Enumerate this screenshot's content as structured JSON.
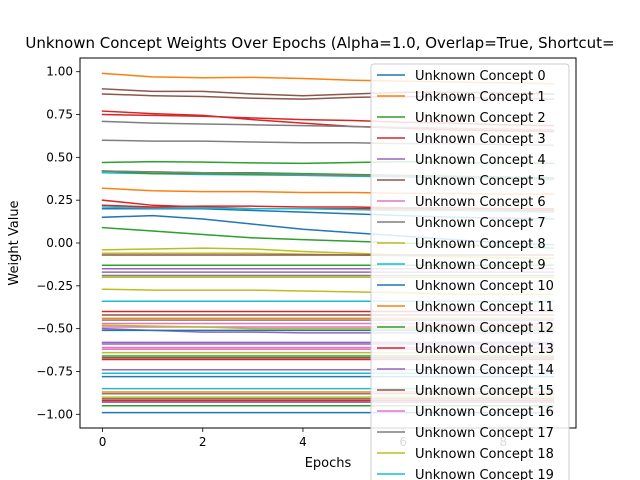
{
  "chart_data": {
    "type": "line",
    "title": "Unknown Concept Weights Over Epochs (Alpha=1.0, Overlap=True, Shortcut=",
    "xlabel": "Epochs",
    "ylabel": "Weight Value",
    "xlim": [
      -0.45,
      9.45
    ],
    "ylim": [
      -1.08,
      1.08
    ],
    "xticks": [
      0,
      2,
      4,
      6,
      8
    ],
    "yticks": [
      -1.0,
      -0.75,
      -0.5,
      -0.25,
      0.0,
      0.25,
      0.5,
      0.75,
      1.0
    ],
    "xtick_labels": [
      "0",
      "2",
      "4",
      "6",
      "8"
    ],
    "ytick_labels": [
      "−1.00",
      "−0.75",
      "−0.50",
      "−0.25",
      "0.00",
      "0.25",
      "0.50",
      "0.75",
      "1.00"
    ],
    "grid": false,
    "legend_position": "upper right",
    "x": [
      0,
      1,
      2,
      3,
      4,
      5,
      6,
      7,
      8,
      9
    ],
    "series": [
      {
        "name": "Unknown Concept 0",
        "color": "#1f77b4",
        "values": [
          -0.99,
          -0.99,
          -0.99,
          -0.99,
          -0.99,
          -0.99,
          -0.99,
          -0.99,
          -0.99,
          -0.99
        ]
      },
      {
        "name": "Unknown Concept 1",
        "color": "#ff7f0e",
        "values": [
          0.99,
          0.97,
          0.965,
          0.967,
          0.96,
          0.95,
          0.945,
          0.94,
          0.935,
          0.93
        ]
      },
      {
        "name": "Unknown Concept 2",
        "color": "#2ca02c",
        "values": [
          0.47,
          0.475,
          0.472,
          0.468,
          0.465,
          0.47,
          0.475,
          0.47,
          0.468,
          0.465
        ]
      },
      {
        "name": "Unknown Concept 3",
        "color": "#d62728",
        "values": [
          0.77,
          0.755,
          0.745,
          0.72,
          0.7,
          0.68,
          0.67,
          0.66,
          0.655,
          0.65
        ]
      },
      {
        "name": "Unknown Concept 4",
        "color": "#9467bd",
        "values": [
          -0.17,
          -0.17,
          -0.17,
          -0.17,
          -0.17,
          -0.17,
          -0.17,
          -0.17,
          -0.17,
          -0.17
        ]
      },
      {
        "name": "Unknown Concept 5",
        "color": "#8c564b",
        "values": [
          0.9,
          0.885,
          0.885,
          0.87,
          0.86,
          0.87,
          0.88,
          0.88,
          0.875,
          0.87
        ]
      },
      {
        "name": "Unknown Concept 6",
        "color": "#e377c2",
        "values": [
          -0.49,
          -0.49,
          -0.49,
          -0.49,
          -0.49,
          -0.49,
          -0.49,
          -0.49,
          -0.49,
          -0.49
        ]
      },
      {
        "name": "Unknown Concept 7",
        "color": "#7f7f7f",
        "values": [
          0.6,
          0.595,
          0.595,
          0.59,
          0.585,
          0.585,
          0.58,
          0.58,
          0.575,
          0.57
        ]
      },
      {
        "name": "Unknown Concept 8",
        "color": "#bcbd22",
        "values": [
          -0.04,
          -0.035,
          -0.03,
          -0.035,
          -0.05,
          -0.06,
          -0.07,
          -0.08,
          -0.085,
          -0.09
        ]
      },
      {
        "name": "Unknown Concept 9",
        "color": "#17becf",
        "values": [
          -0.34,
          -0.34,
          -0.34,
          -0.34,
          -0.34,
          -0.34,
          -0.34,
          -0.34,
          -0.34,
          -0.34
        ]
      },
      {
        "name": "Unknown Concept 10",
        "color": "#1f77b4",
        "values": [
          0.15,
          0.16,
          0.14,
          0.11,
          0.08,
          0.06,
          0.04,
          0.02,
          0.0,
          -0.01
        ]
      },
      {
        "name": "Unknown Concept 11",
        "color": "#ff7f0e",
        "values": [
          0.32,
          0.305,
          0.3,
          0.3,
          0.295,
          0.295,
          0.29,
          0.29,
          0.285,
          0.285
        ]
      },
      {
        "name": "Unknown Concept 12",
        "color": "#2ca02c",
        "values": [
          0.09,
          0.07,
          0.05,
          0.03,
          0.02,
          0.01,
          0.0,
          -0.01,
          -0.02,
          -0.03
        ]
      },
      {
        "name": "Unknown Concept 13",
        "color": "#d62728",
        "values": [
          0.25,
          0.22,
          0.21,
          0.2,
          0.2,
          0.2,
          0.2,
          0.195,
          0.19,
          0.19
        ]
      },
      {
        "name": "Unknown Concept 14",
        "color": "#9467bd",
        "values": [
          -0.58,
          -0.58,
          -0.58,
          -0.58,
          -0.58,
          -0.58,
          -0.58,
          -0.58,
          -0.58,
          -0.58
        ]
      },
      {
        "name": "Unknown Concept 15",
        "color": "#8c564b",
        "values": [
          -0.67,
          -0.67,
          -0.67,
          -0.67,
          -0.67,
          -0.67,
          -0.67,
          -0.67,
          -0.67,
          -0.67
        ]
      },
      {
        "name": "Unknown Concept 16",
        "color": "#e377c2",
        "values": [
          -0.61,
          -0.61,
          -0.61,
          -0.61,
          -0.61,
          -0.61,
          -0.61,
          -0.61,
          -0.61,
          -0.61
        ]
      },
      {
        "name": "Unknown Concept 17",
        "color": "#7f7f7f",
        "values": [
          0.71,
          0.7,
          0.695,
          0.69,
          0.685,
          0.68,
          0.675,
          0.67,
          0.665,
          0.66
        ]
      },
      {
        "name": "Unknown Concept 18",
        "color": "#bcbd22",
        "values": [
          -0.27,
          -0.275,
          -0.275,
          -0.275,
          -0.28,
          -0.285,
          -0.29,
          -0.3,
          -0.3,
          -0.3
        ]
      },
      {
        "name": "Unknown Concept 19",
        "color": "#17becf",
        "values": [
          0.41,
          0.405,
          0.4,
          0.398,
          0.395,
          0.39,
          0.385,
          0.38,
          0.375,
          0.37
        ]
      },
      {
        "name": "",
        "color": "#1f77b4",
        "values": [
          0.2,
          0.2,
          0.2,
          0.19,
          0.18,
          0.17,
          0.16,
          0.15,
          0.145,
          0.14
        ]
      },
      {
        "name": "",
        "color": "#2ca02c",
        "values": [
          0.42,
          0.415,
          0.41,
          0.41,
          0.405,
          0.4,
          0.395,
          0.39,
          0.385,
          0.38
        ]
      },
      {
        "name": "",
        "color": "#d62728",
        "values": [
          0.75,
          0.745,
          0.74,
          0.73,
          0.72,
          0.715,
          0.705,
          0.7,
          0.69,
          0.685
        ]
      },
      {
        "name": "",
        "color": "#8c564b",
        "values": [
          0.87,
          0.86,
          0.855,
          0.845,
          0.84,
          0.85,
          0.855,
          0.85,
          0.845,
          0.84
        ]
      },
      {
        "name": "",
        "color": "#17becf",
        "values": [
          0.21,
          0.205,
          0.205,
          0.2,
          0.2,
          0.195,
          0.19,
          0.19,
          0.185,
          0.18
        ]
      },
      {
        "name": "",
        "color": "#d62728",
        "values": [
          0.22,
          0.21,
          0.215,
          0.215,
          0.21,
          0.21,
          0.205,
          0.205,
          0.2,
          0.2
        ]
      },
      {
        "name": "",
        "color": "#2ca02c",
        "values": [
          0.42,
          0.405,
          0.405,
          0.4,
          0.4,
          0.395,
          0.39,
          0.385,
          0.38,
          0.375
        ]
      },
      {
        "name": "",
        "color": "#7f7f7f",
        "values": [
          0.42,
          0.415,
          0.41,
          0.405,
          0.4,
          0.395,
          0.39,
          0.385,
          0.38,
          0.375
        ]
      },
      {
        "name": "",
        "color": "#bcbd22",
        "values": [
          -0.06,
          -0.06,
          -0.06,
          -0.06,
          -0.065,
          -0.07,
          -0.075,
          -0.08,
          -0.085,
          -0.09
        ]
      },
      {
        "name": "",
        "color": "#2ca02c",
        "values": [
          -0.13,
          -0.13,
          -0.13,
          -0.13,
          -0.13,
          -0.13,
          -0.13,
          -0.13,
          -0.13,
          -0.13
        ]
      },
      {
        "name": "",
        "color": "#8c564b",
        "values": [
          -0.07,
          -0.07,
          -0.07,
          -0.07,
          -0.07,
          -0.07,
          -0.07,
          -0.07,
          -0.07,
          -0.07
        ]
      },
      {
        "name": "",
        "color": "#9467bd",
        "values": [
          -0.15,
          -0.15,
          -0.15,
          -0.15,
          -0.15,
          -0.15,
          -0.15,
          -0.15,
          -0.15,
          -0.15
        ]
      },
      {
        "name": "",
        "color": "#7f7f7f",
        "values": [
          -0.19,
          -0.19,
          -0.19,
          -0.19,
          -0.19,
          -0.19,
          -0.19,
          -0.19,
          -0.19,
          -0.19
        ]
      },
      {
        "name": "",
        "color": "#bcbd22",
        "values": [
          -0.2,
          -0.2,
          -0.2,
          -0.2,
          -0.2,
          -0.2,
          -0.2,
          -0.2,
          -0.2,
          -0.2
        ]
      },
      {
        "name": "",
        "color": "#d62728",
        "values": [
          -0.4,
          -0.4,
          -0.4,
          -0.4,
          -0.4,
          -0.4,
          -0.4,
          -0.4,
          -0.4,
          -0.4
        ]
      },
      {
        "name": "",
        "color": "#8c564b",
        "values": [
          -0.42,
          -0.42,
          -0.42,
          -0.42,
          -0.42,
          -0.42,
          -0.42,
          -0.42,
          -0.42,
          -0.42
        ]
      },
      {
        "name": "",
        "color": "#ff7f0e",
        "values": [
          -0.44,
          -0.44,
          -0.44,
          -0.44,
          -0.44,
          -0.44,
          -0.44,
          -0.44,
          -0.44,
          -0.44
        ]
      },
      {
        "name": "",
        "color": "#7f7f7f",
        "values": [
          -0.45,
          -0.45,
          -0.45,
          -0.45,
          -0.45,
          -0.45,
          -0.45,
          -0.45,
          -0.45,
          -0.45
        ]
      },
      {
        "name": "",
        "color": "#e377c2",
        "values": [
          -0.47,
          -0.47,
          -0.47,
          -0.47,
          -0.47,
          -0.47,
          -0.47,
          -0.47,
          -0.47,
          -0.47
        ]
      },
      {
        "name": "",
        "color": "#bcbd22",
        "values": [
          -0.48,
          -0.485,
          -0.49,
          -0.5,
          -0.5,
          -0.5,
          -0.5,
          -0.5,
          -0.5,
          -0.5
        ]
      },
      {
        "name": "",
        "color": "#9467bd",
        "values": [
          -0.5,
          -0.51,
          -0.52,
          -0.52,
          -0.525,
          -0.525,
          -0.525,
          -0.525,
          -0.525,
          -0.525
        ]
      },
      {
        "name": "",
        "color": "#1f77b4",
        "values": [
          -0.51,
          -0.51,
          -0.51,
          -0.51,
          -0.51,
          -0.51,
          -0.51,
          -0.51,
          -0.51,
          -0.51
        ]
      },
      {
        "name": "",
        "color": "#9467bd",
        "values": [
          -0.59,
          -0.59,
          -0.59,
          -0.59,
          -0.59,
          -0.59,
          -0.59,
          -0.59,
          -0.59,
          -0.59
        ]
      },
      {
        "name": "",
        "color": "#e377c2",
        "values": [
          -0.62,
          -0.62,
          -0.62,
          -0.62,
          -0.62,
          -0.62,
          -0.62,
          -0.62,
          -0.62,
          -0.62
        ]
      },
      {
        "name": "",
        "color": "#2ca02c",
        "values": [
          -0.66,
          -0.66,
          -0.66,
          -0.66,
          -0.66,
          -0.66,
          -0.66,
          -0.66,
          -0.66,
          -0.66
        ]
      },
      {
        "name": "",
        "color": "#bcbd22",
        "values": [
          -0.64,
          -0.64,
          -0.64,
          -0.64,
          -0.64,
          -0.64,
          -0.64,
          -0.64,
          -0.64,
          -0.64
        ]
      },
      {
        "name": "",
        "color": "#d62728",
        "values": [
          -0.68,
          -0.68,
          -0.68,
          -0.68,
          -0.68,
          -0.68,
          -0.68,
          -0.68,
          -0.68,
          -0.68
        ]
      },
      {
        "name": "",
        "color": "#9467bd",
        "values": [
          -0.74,
          -0.74,
          -0.74,
          -0.74,
          -0.74,
          -0.74,
          -0.74,
          -0.74,
          -0.74,
          -0.74
        ]
      },
      {
        "name": "",
        "color": "#17becf",
        "values": [
          -0.76,
          -0.76,
          -0.76,
          -0.76,
          -0.76,
          -0.76,
          -0.76,
          -0.76,
          -0.76,
          -0.76
        ]
      },
      {
        "name": "",
        "color": "#1f77b4",
        "values": [
          -0.78,
          -0.78,
          -0.78,
          -0.78,
          -0.78,
          -0.78,
          -0.78,
          -0.78,
          -0.78,
          -0.78
        ]
      },
      {
        "name": "",
        "color": "#17becf",
        "values": [
          -0.85,
          -0.85,
          -0.85,
          -0.85,
          -0.85,
          -0.85,
          -0.85,
          -0.85,
          -0.85,
          -0.85
        ]
      },
      {
        "name": "",
        "color": "#ff7f0e",
        "values": [
          -0.87,
          -0.87,
          -0.87,
          -0.87,
          -0.87,
          -0.87,
          -0.87,
          -0.87,
          -0.87,
          -0.87
        ]
      },
      {
        "name": "",
        "color": "#7f7f7f",
        "values": [
          -0.88,
          -0.88,
          -0.88,
          -0.88,
          -0.88,
          -0.88,
          -0.88,
          -0.88,
          -0.88,
          -0.88
        ]
      },
      {
        "name": "",
        "color": "#bcbd22",
        "values": [
          -0.9,
          -0.9,
          -0.9,
          -0.9,
          -0.9,
          -0.9,
          -0.9,
          -0.9,
          -0.9,
          -0.9
        ]
      },
      {
        "name": "",
        "color": "#8c564b",
        "values": [
          -0.91,
          -0.91,
          -0.91,
          -0.91,
          -0.91,
          -0.91,
          -0.91,
          -0.91,
          -0.91,
          -0.91
        ]
      },
      {
        "name": "",
        "color": "#d62728",
        "values": [
          -0.92,
          -0.92,
          -0.92,
          -0.92,
          -0.92,
          -0.92,
          -0.92,
          -0.92,
          -0.92,
          -0.92
        ]
      },
      {
        "name": "",
        "color": "#9467bd",
        "values": [
          -0.93,
          -0.93,
          -0.93,
          -0.93,
          -0.93,
          -0.93,
          -0.93,
          -0.93,
          -0.93,
          -0.93
        ]
      },
      {
        "name": "",
        "color": "#2ca02c",
        "values": [
          -0.95,
          -0.95,
          -0.95,
          -0.95,
          -0.95,
          -0.95,
          -0.95,
          -0.95,
          -0.95,
          -0.95
        ]
      }
    ]
  }
}
